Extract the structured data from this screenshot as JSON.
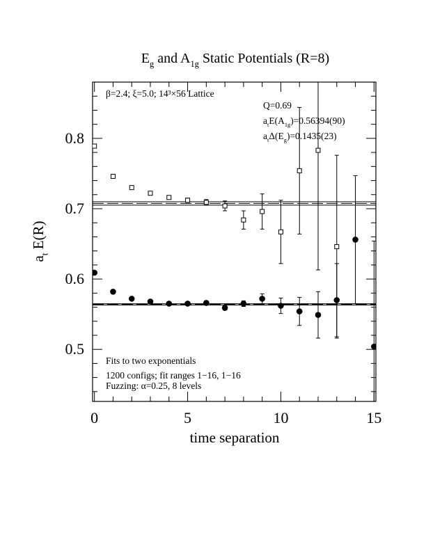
{
  "chart_data": {
    "type": "errorbar",
    "title": [
      {
        "t": "E"
      },
      {
        "t": "g",
        "sub": true
      },
      {
        "t": " and A"
      },
      {
        "t": "1g",
        "sub": true
      },
      {
        "t": " Static Potentials (R=8)"
      }
    ],
    "xlabel": [
      {
        "t": "time separation"
      }
    ],
    "ylabel": [
      {
        "t": "a"
      },
      {
        "t": "t",
        "sub": true
      },
      {
        "t": " E(R)"
      }
    ],
    "annotations": [
      [
        {
          "t": "β=2.4; ξ=5.0; 14³×56 Lattice"
        }
      ],
      [
        {
          "t": "Q=0.69"
        }
      ],
      [
        {
          "t": "a"
        },
        {
          "t": "t",
          "sub": true
        },
        {
          "t": "E(A"
        },
        {
          "t": "1g",
          "sub": true
        },
        {
          "t": ")=0.56394(90)"
        }
      ],
      [
        {
          "t": "a"
        },
        {
          "t": "t",
          "sub": true
        },
        {
          "t": "Δ(E"
        },
        {
          "t": "g",
          "sub": true
        },
        {
          "t": ")=0.1435(23)"
        }
      ],
      [
        {
          "t": "Fits to two exponentials"
        }
      ],
      [
        {
          "t": "1200 configs; fit ranges 1−16, 1−16"
        }
      ],
      [
        {
          "t": "Fuzzing: α=0.25, 8 levels"
        }
      ]
    ],
    "x": [
      0,
      1,
      2,
      3,
      4,
      5,
      6,
      7,
      8,
      9,
      10,
      11,
      12,
      13,
      14,
      15
    ],
    "series": [
      {
        "marker": "square-open",
        "color": "#000000",
        "values": [
          0.789,
          0.746,
          0.73,
          0.722,
          0.716,
          0.712,
          0.709,
          0.704,
          0.684,
          0.696,
          0.667,
          0.754,
          0.783,
          0.646,
          null,
          null
        ],
        "errors": [
          0.002,
          0.002,
          0.002,
          0.002,
          0.002,
          0.003,
          0.004,
          0.007,
          0.013,
          0.025,
          0.045,
          0.09,
          0.17,
          0.13,
          null,
          null
        ]
      },
      {
        "marker": "circle-filled",
        "color": "#000000",
        "values": [
          0.609,
          0.582,
          0.572,
          0.568,
          0.565,
          0.565,
          0.566,
          0.559,
          0.565,
          0.572,
          0.562,
          0.554,
          0.549,
          0.57,
          0.656,
          0.504
        ],
        "errors": [
          0.002,
          0.002,
          0.002,
          0.002,
          0.002,
          0.002,
          0.003,
          0.003,
          0.004,
          0.007,
          0.011,
          0.02,
          0.033,
          0.052,
          0.091,
          0.15
        ]
      }
    ],
    "fits": [
      {
        "value": 0.7075,
        "error": 0.0024,
        "style": "thin"
      },
      {
        "value": 0.564,
        "error": 0.0009,
        "style": "thick"
      }
    ],
    "xlim": [
      -0.1,
      15.1
    ],
    "ylim": [
      0.426,
      0.88
    ],
    "xticks": [
      0,
      5,
      10,
      15
    ],
    "yticks": [
      0.5,
      0.6,
      0.7,
      0.8
    ],
    "xminorticks": [
      1,
      2,
      3,
      4,
      6,
      7,
      8,
      9,
      11,
      12,
      13,
      14
    ],
    "yminorticks": [
      0.44,
      0.46,
      0.48,
      0.52,
      0.54,
      0.56,
      0.58,
      0.62,
      0.64,
      0.66,
      0.68,
      0.72,
      0.74,
      0.76,
      0.78,
      0.82,
      0.84,
      0.86
    ]
  }
}
